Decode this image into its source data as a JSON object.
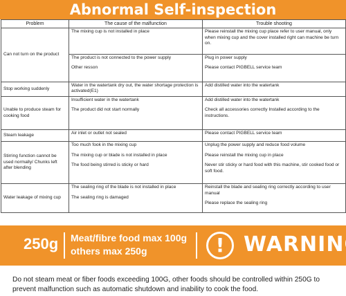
{
  "title": "Abnormal Self-inspection",
  "table": {
    "headers": [
      "Problem",
      "The cause of the malfunction",
      "Trouble shooting"
    ],
    "rows": [
      {
        "problem": "Can not turn on the product",
        "causes": [
          "The mixing cup is not installed in place",
          "The product is not connected to the power supply",
          "Other resson"
        ],
        "fixes": [
          "Please reinstall the mixing cup place refer to  user manual, only when mixing cup and the cover installed right can machine be turn on.",
          "Plug in power supply",
          "Please contact PIGBELL service team"
        ]
      },
      {
        "problem": "Stop working suddenly",
        "causes": [
          "Water in the watertank dry out, the water shortage protection is activated(E1)"
        ],
        "fixes": [
          "Add distilled water into the watertank"
        ]
      },
      {
        "problem": "Unable to produce steam for cooking food",
        "causes": [
          "Insufficient water in the watertank",
          "The product did not start normally"
        ],
        "fixes": [
          "Add distilled water into the watertank",
          "Check all accessories correctly Installed according to the instructions."
        ]
      },
      {
        "problem": "Steam leakage",
        "causes": [
          "Air inlet or outlet not sealed"
        ],
        "fixes": [
          "Please contact PIGBELL service team"
        ]
      },
      {
        "problem": "Stirring function cannot be used normally/ Chunks left after blending",
        "causes": [
          "Too much fook in the mixing cup",
          "The mixing cup or blade is not installed in place",
          "The food being stirred is sticky or hard"
        ],
        "fixes": [
          "Unplug the power supply and reduce food volume",
          "Please reinstall the mixing cup in place",
          "Never stir sticky or hard food with this machine, stir cooked food or soft food."
        ]
      },
      {
        "problem": "Water leakage of mixing cup",
        "causes": [
          "The sealing ring of the blade is not installed in place",
          "The sealing ring is damaged"
        ],
        "fixes": [
          "Reinstall the blade and sealing ring correctly according to user manual",
          "Please replace the sealing ring"
        ]
      }
    ]
  },
  "warning": {
    "weight": "250g",
    "line1": "Meat/fibre food max 100g",
    "line2": "others max 250g",
    "symbol": "!",
    "word": "WARNING",
    "bar_color": "#f0932a"
  },
  "footnote": "Do not steam meat or fiber foods exceeding 100G, other foods should be controlled within 250G to prevent malfunction such as automatic shutdown and inability to cook the food."
}
